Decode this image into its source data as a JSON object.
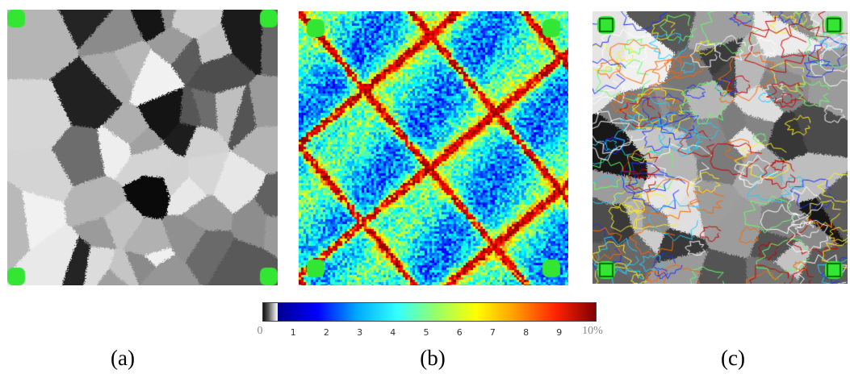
{
  "panels": [
    {
      "id": "a",
      "caption": "(a)",
      "type": "grayscale-grain-map"
    },
    {
      "id": "b",
      "caption": "(b)",
      "type": "strain-map-jet"
    },
    {
      "id": "c",
      "caption": "(c)",
      "type": "grain-map-with-strain-contours"
    }
  ],
  "marker_color": "#33e633",
  "colorbar": {
    "ticks": [
      "0",
      "1",
      "2",
      "3",
      "4",
      "5",
      "6",
      "7",
      "8",
      "9",
      "10%"
    ],
    "colors": [
      "#00008f",
      "#0000ff",
      "#00aaff",
      "#33ffff",
      "#99ff66",
      "#ffff00",
      "#ff9900",
      "#ff2200",
      "#800000"
    ]
  }
}
